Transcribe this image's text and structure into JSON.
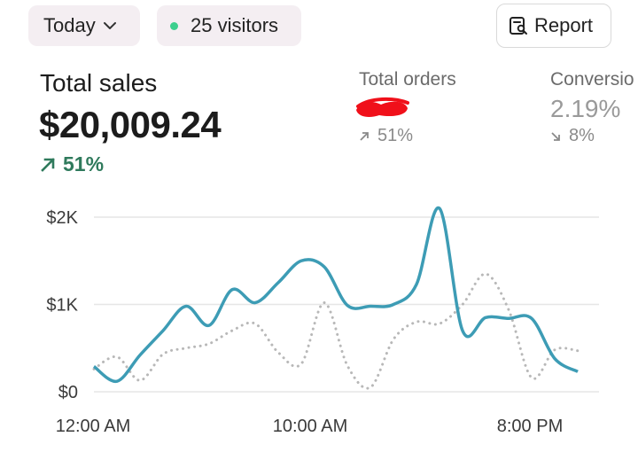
{
  "filters": {
    "period_label": "Today",
    "visitors_label": "25 visitors",
    "visitors_dot_color": "#3ccf8e"
  },
  "toolbar": {
    "report_label": "Report"
  },
  "metrics": {
    "total_sales": {
      "title": "Total sales",
      "value": "$20,009.24",
      "change": "51%",
      "direction": "up"
    },
    "total_orders": {
      "title": "Total orders",
      "value_redacted": true,
      "change": "51%",
      "direction": "up"
    },
    "conversion": {
      "title": "Conversio",
      "value": "2.19%",
      "change": "8%",
      "direction": "down"
    }
  },
  "colors": {
    "positive": "#2f7a5c",
    "current_series": "#3d9cb5",
    "comparison_series": "#b8b8b8",
    "redaction": "#f0101a"
  },
  "chart_data": {
    "type": "line",
    "ylabel_ticks": [
      "$0",
      "$1K",
      "$2K"
    ],
    "ylim": [
      0,
      2000
    ],
    "x_tick_labels": [
      "12:00 AM",
      "10:00 AM",
      "8:00 PM"
    ],
    "grid": true,
    "series": [
      {
        "style": "solid",
        "points": [
          [
            0,
            290
          ],
          [
            1,
            120
          ],
          [
            2,
            420
          ],
          [
            3,
            700
          ],
          [
            4,
            980
          ],
          [
            5,
            760
          ],
          [
            6,
            1170
          ],
          [
            7,
            1020
          ],
          [
            8,
            1250
          ],
          [
            9,
            1500
          ],
          [
            10,
            1430
          ],
          [
            11,
            990
          ],
          [
            12,
            980
          ],
          [
            13,
            1000
          ],
          [
            14,
            1230
          ],
          [
            15,
            2100
          ],
          [
            16,
            700
          ],
          [
            17,
            850
          ],
          [
            18,
            840
          ],
          [
            19,
            840
          ],
          [
            20,
            380
          ],
          [
            21,
            230
          ]
        ]
      },
      {
        "style": "dotted",
        "points": [
          [
            0,
            260
          ],
          [
            1,
            400
          ],
          [
            2,
            130
          ],
          [
            3,
            430
          ],
          [
            4,
            500
          ],
          [
            5,
            550
          ],
          [
            6,
            700
          ],
          [
            7,
            780
          ],
          [
            8,
            450
          ],
          [
            9,
            320
          ],
          [
            10,
            1020
          ],
          [
            11,
            300
          ],
          [
            12,
            50
          ],
          [
            13,
            600
          ],
          [
            14,
            800
          ],
          [
            15,
            780
          ],
          [
            16,
            1000
          ],
          [
            17,
            1350
          ],
          [
            18,
            940
          ],
          [
            19,
            160
          ],
          [
            20,
            480
          ],
          [
            21,
            470
          ]
        ]
      }
    ]
  }
}
